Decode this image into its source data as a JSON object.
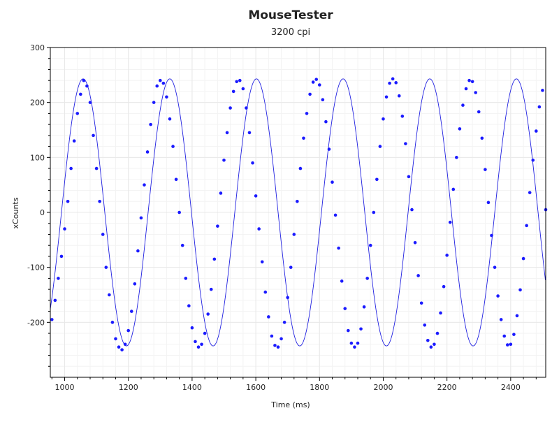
{
  "chart_data": {
    "type": "scatter",
    "title": "MouseTester",
    "subtitle": "3200 cpi",
    "xlabel": "Time (ms)",
    "ylabel": "xCounts",
    "xlim": [
      955,
      2510
    ],
    "ylim": [
      -300,
      300
    ],
    "x_ticks": [
      1000,
      1200,
      1400,
      1600,
      1800,
      2000,
      2200,
      2400
    ],
    "y_ticks": [
      -200,
      -100,
      0,
      100,
      200,
      300
    ],
    "grid": true,
    "colors": {
      "series": "#1a1aff",
      "line": "#2020e0",
      "grid": "#e8e8e8",
      "axis": "#000000"
    },
    "series": [
      {
        "fit": {
          "model": "sine",
          "amplitude": 243,
          "period_ms": 272,
          "phase_ms": 990,
          "x_start": 955,
          "x_end": 2510
        },
        "sample_points": [
          [
            960,
            -195
          ],
          [
            970,
            -160
          ],
          [
            980,
            -120
          ],
          [
            990,
            -80
          ],
          [
            1000,
            -30
          ],
          [
            1010,
            20
          ],
          [
            1020,
            80
          ],
          [
            1030,
            130
          ],
          [
            1040,
            180
          ],
          [
            1050,
            215
          ],
          [
            1060,
            240
          ],
          [
            1070,
            230
          ],
          [
            1080,
            200
          ],
          [
            1090,
            140
          ],
          [
            1100,
            80
          ],
          [
            1110,
            20
          ],
          [
            1120,
            -40
          ],
          [
            1130,
            -100
          ],
          [
            1140,
            -150
          ],
          [
            1150,
            -200
          ],
          [
            1160,
            -230
          ],
          [
            1170,
            -245
          ],
          [
            1180,
            -250
          ],
          [
            1190,
            -240
          ],
          [
            1200,
            -215
          ],
          [
            1210,
            -180
          ],
          [
            1220,
            -130
          ],
          [
            1230,
            -70
          ],
          [
            1240,
            -10
          ],
          [
            1250,
            50
          ],
          [
            1260,
            110
          ],
          [
            1270,
            160
          ],
          [
            1280,
            200
          ],
          [
            1290,
            230
          ],
          [
            1300,
            240
          ],
          [
            1310,
            235
          ],
          [
            1320,
            210
          ],
          [
            1330,
            170
          ],
          [
            1340,
            120
          ],
          [
            1350,
            60
          ],
          [
            1360,
            0
          ],
          [
            1370,
            -60
          ],
          [
            1380,
            -120
          ],
          [
            1390,
            -170
          ],
          [
            1400,
            -210
          ],
          [
            1410,
            -235
          ],
          [
            1420,
            -245
          ],
          [
            1430,
            -240
          ],
          [
            1440,
            -220
          ],
          [
            1450,
            -185
          ],
          [
            1460,
            -140
          ],
          [
            1470,
            -85
          ],
          [
            1480,
            -25
          ],
          [
            1490,
            35
          ],
          [
            1500,
            95
          ],
          [
            1510,
            145
          ],
          [
            1520,
            190
          ],
          [
            1530,
            220
          ],
          [
            1540,
            238
          ],
          [
            1550,
            240
          ],
          [
            1560,
            225
          ],
          [
            1570,
            190
          ],
          [
            1580,
            145
          ],
          [
            1590,
            90
          ],
          [
            1600,
            30
          ],
          [
            1610,
            -30
          ],
          [
            1620,
            -90
          ],
          [
            1630,
            -145
          ],
          [
            1640,
            -190
          ],
          [
            1650,
            -225
          ],
          [
            1660,
            -242
          ],
          [
            1670,
            -245
          ],
          [
            1680,
            -230
          ],
          [
            1690,
            -200
          ],
          [
            1700,
            -155
          ],
          [
            1710,
            -100
          ],
          [
            1720,
            -40
          ],
          [
            1730,
            20
          ],
          [
            1740,
            80
          ],
          [
            1750,
            135
          ],
          [
            1760,
            180
          ],
          [
            1770,
            215
          ],
          [
            1780,
            237
          ],
          [
            1790,
            242
          ],
          [
            1800,
            232
          ],
          [
            1810,
            205
          ],
          [
            1820,
            165
          ],
          [
            1830,
            115
          ],
          [
            1840,
            55
          ],
          [
            1850,
            -5
          ],
          [
            1860,
            -65
          ],
          [
            1870,
            -125
          ],
          [
            1880,
            -175
          ],
          [
            1890,
            -215
          ],
          [
            1900,
            -238
          ],
          [
            1910,
            -245
          ],
          [
            1920,
            -238
          ],
          [
            1930,
            -212
          ],
          [
            1940,
            -172
          ],
          [
            1950,
            -120
          ],
          [
            1960,
            -60
          ],
          [
            1970,
            0
          ],
          [
            1980,
            60
          ],
          [
            1990,
            120
          ],
          [
            2000,
            170
          ],
          [
            2010,
            210
          ],
          [
            2020,
            235
          ],
          [
            2030,
            243
          ],
          [
            2040,
            236
          ],
          [
            2050,
            212
          ],
          [
            2060,
            175
          ],
          [
            2070,
            125
          ],
          [
            2080,
            65
          ],
          [
            2090,
            5
          ],
          [
            2100,
            -55
          ],
          [
            2110,
            -115
          ],
          [
            2120,
            -165
          ],
          [
            2130,
            -205
          ],
          [
            2140,
            -233
          ],
          [
            2150,
            -245
          ],
          [
            2160,
            -240
          ],
          [
            2170,
            -220
          ],
          [
            2180,
            -183
          ],
          [
            2190,
            -135
          ],
          [
            2200,
            -78
          ],
          [
            2210,
            -18
          ],
          [
            2220,
            42
          ],
          [
            2230,
            100
          ],
          [
            2240,
            152
          ],
          [
            2250,
            195
          ],
          [
            2260,
            225
          ],
          [
            2270,
            240
          ],
          [
            2280,
            238
          ],
          [
            2290,
            218
          ],
          [
            2300,
            183
          ],
          [
            2310,
            135
          ],
          [
            2320,
            78
          ],
          [
            2330,
            18
          ],
          [
            2340,
            -42
          ],
          [
            2350,
            -100
          ],
          [
            2360,
            -152
          ],
          [
            2370,
            -195
          ],
          [
            2380,
            -225
          ],
          [
            2390,
            -241
          ],
          [
            2400,
            -240
          ],
          [
            2410,
            -222
          ],
          [
            2420,
            -188
          ],
          [
            2430,
            -141
          ],
          [
            2440,
            -84
          ],
          [
            2450,
            -24
          ],
          [
            2460,
            36
          ],
          [
            2470,
            95
          ],
          [
            2480,
            148
          ],
          [
            2490,
            192
          ],
          [
            2500,
            222
          ],
          [
            2510,
            5
          ]
        ]
      }
    ]
  }
}
